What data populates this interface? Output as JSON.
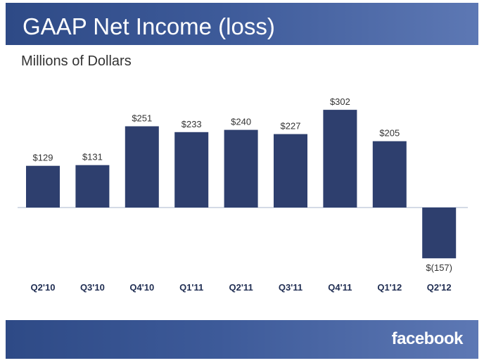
{
  "header": {
    "title": "GAAP Net Income (loss)"
  },
  "subtitle": "Millions of Dollars",
  "footer": {
    "logo_text": "facebook"
  },
  "colors": {
    "band": "#3d5a99",
    "bar": "#2e3f6e",
    "axis": "#aab4cc"
  },
  "chart_data": {
    "type": "bar",
    "title": "GAAP Net Income (loss)",
    "subtitle": "Millions of Dollars",
    "xlabel": "",
    "ylabel": "",
    "categories": [
      "Q2'10",
      "Q3'10",
      "Q4'10",
      "Q1'11",
      "Q2'11",
      "Q3'11",
      "Q4'11",
      "Q1'12",
      "Q2'12"
    ],
    "values": [
      129,
      131,
      251,
      233,
      240,
      227,
      302,
      205,
      -157
    ],
    "labels": [
      "$129",
      "$131",
      "$251",
      "$233",
      "$240",
      "$227",
      "$302",
      "$205",
      "$(157)"
    ],
    "ylim": [
      -157,
      302
    ],
    "grid": false,
    "legend": "none"
  }
}
